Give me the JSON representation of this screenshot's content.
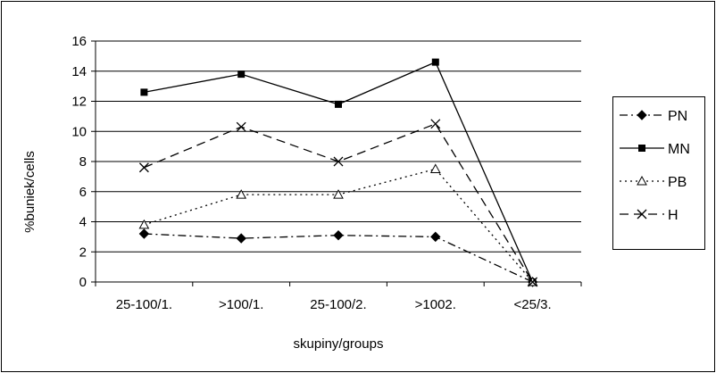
{
  "chart_data": {
    "type": "line",
    "title": "",
    "xlabel": "skupiny/groups",
    "ylabel": "%buniek/cells",
    "categories": [
      "25-100/1.",
      ">100/1.",
      "25-100/2.",
      ">1002.",
      "<25/3."
    ],
    "ylim": [
      0,
      16
    ],
    "yticks": [
      0,
      2,
      4,
      6,
      8,
      10,
      12,
      14,
      16
    ],
    "grid": "horizontal",
    "legend_position": "right",
    "series": [
      {
        "name": "PN",
        "values": [
          3.2,
          2.9,
          3.1,
          3.0,
          0
        ],
        "marker": "diamond",
        "dash": "dash-dot"
      },
      {
        "name": "MN",
        "values": [
          12.6,
          13.8,
          11.8,
          14.6,
          0
        ],
        "marker": "square",
        "dash": "solid"
      },
      {
        "name": "PB",
        "values": [
          3.8,
          5.8,
          5.8,
          7.5,
          0
        ],
        "marker": "triangle",
        "dash": "dotted"
      },
      {
        "name": "H",
        "values": [
          7.6,
          10.3,
          8.0,
          10.5,
          0
        ],
        "marker": "x",
        "dash": "dashed"
      }
    ]
  }
}
